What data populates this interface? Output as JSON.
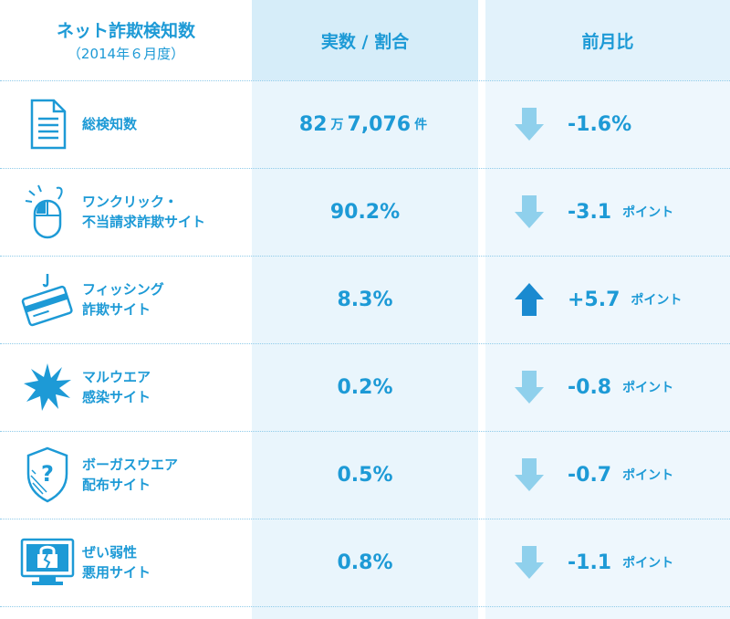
{
  "header": {
    "col1_title": "ネット詐欺検知数",
    "col1_sub": "（2014年６月度）",
    "col2_title": "実数 / 割合",
    "col3_title": "前月比"
  },
  "rows": [
    {
      "icon": "document-icon",
      "label1": "総検知数",
      "label2": "",
      "value_parts": [
        "82",
        "万",
        "7,076",
        "件"
      ],
      "trend": "down",
      "change": "-1.6%",
      "unit": ""
    },
    {
      "icon": "mouse-click-icon",
      "label1": "ワンクリック・",
      "label2": "不当請求詐欺サイト",
      "value": "90.2%",
      "trend": "down",
      "change": "-3.1",
      "unit": "ポイント"
    },
    {
      "icon": "credit-card-hook-icon",
      "label1": "フィッシング",
      "label2": "詐欺サイト",
      "value": "8.3%",
      "trend": "up",
      "change": "+5.7",
      "unit": "ポイント"
    },
    {
      "icon": "malware-burst-icon",
      "label1": "マルウエア",
      "label2": "感染サイト",
      "value": "0.2%",
      "trend": "down",
      "change": "-0.8",
      "unit": "ポイント"
    },
    {
      "icon": "shield-question-icon",
      "label1": "ボーガスウエア",
      "label2": "配布サイト",
      "value": "0.5%",
      "trend": "down",
      "change": "-0.7",
      "unit": "ポイント"
    },
    {
      "icon": "broken-lock-monitor-icon",
      "label1": "ぜい弱性",
      "label2": "悪用サイト",
      "value": "0.8%",
      "trend": "down",
      "change": "-1.1",
      "unit": "ポイント"
    }
  ],
  "colors": {
    "accent": "#1d9ad6",
    "down_arrow": "#8fd0ec",
    "up_arrow": "#1a8ad0"
  }
}
